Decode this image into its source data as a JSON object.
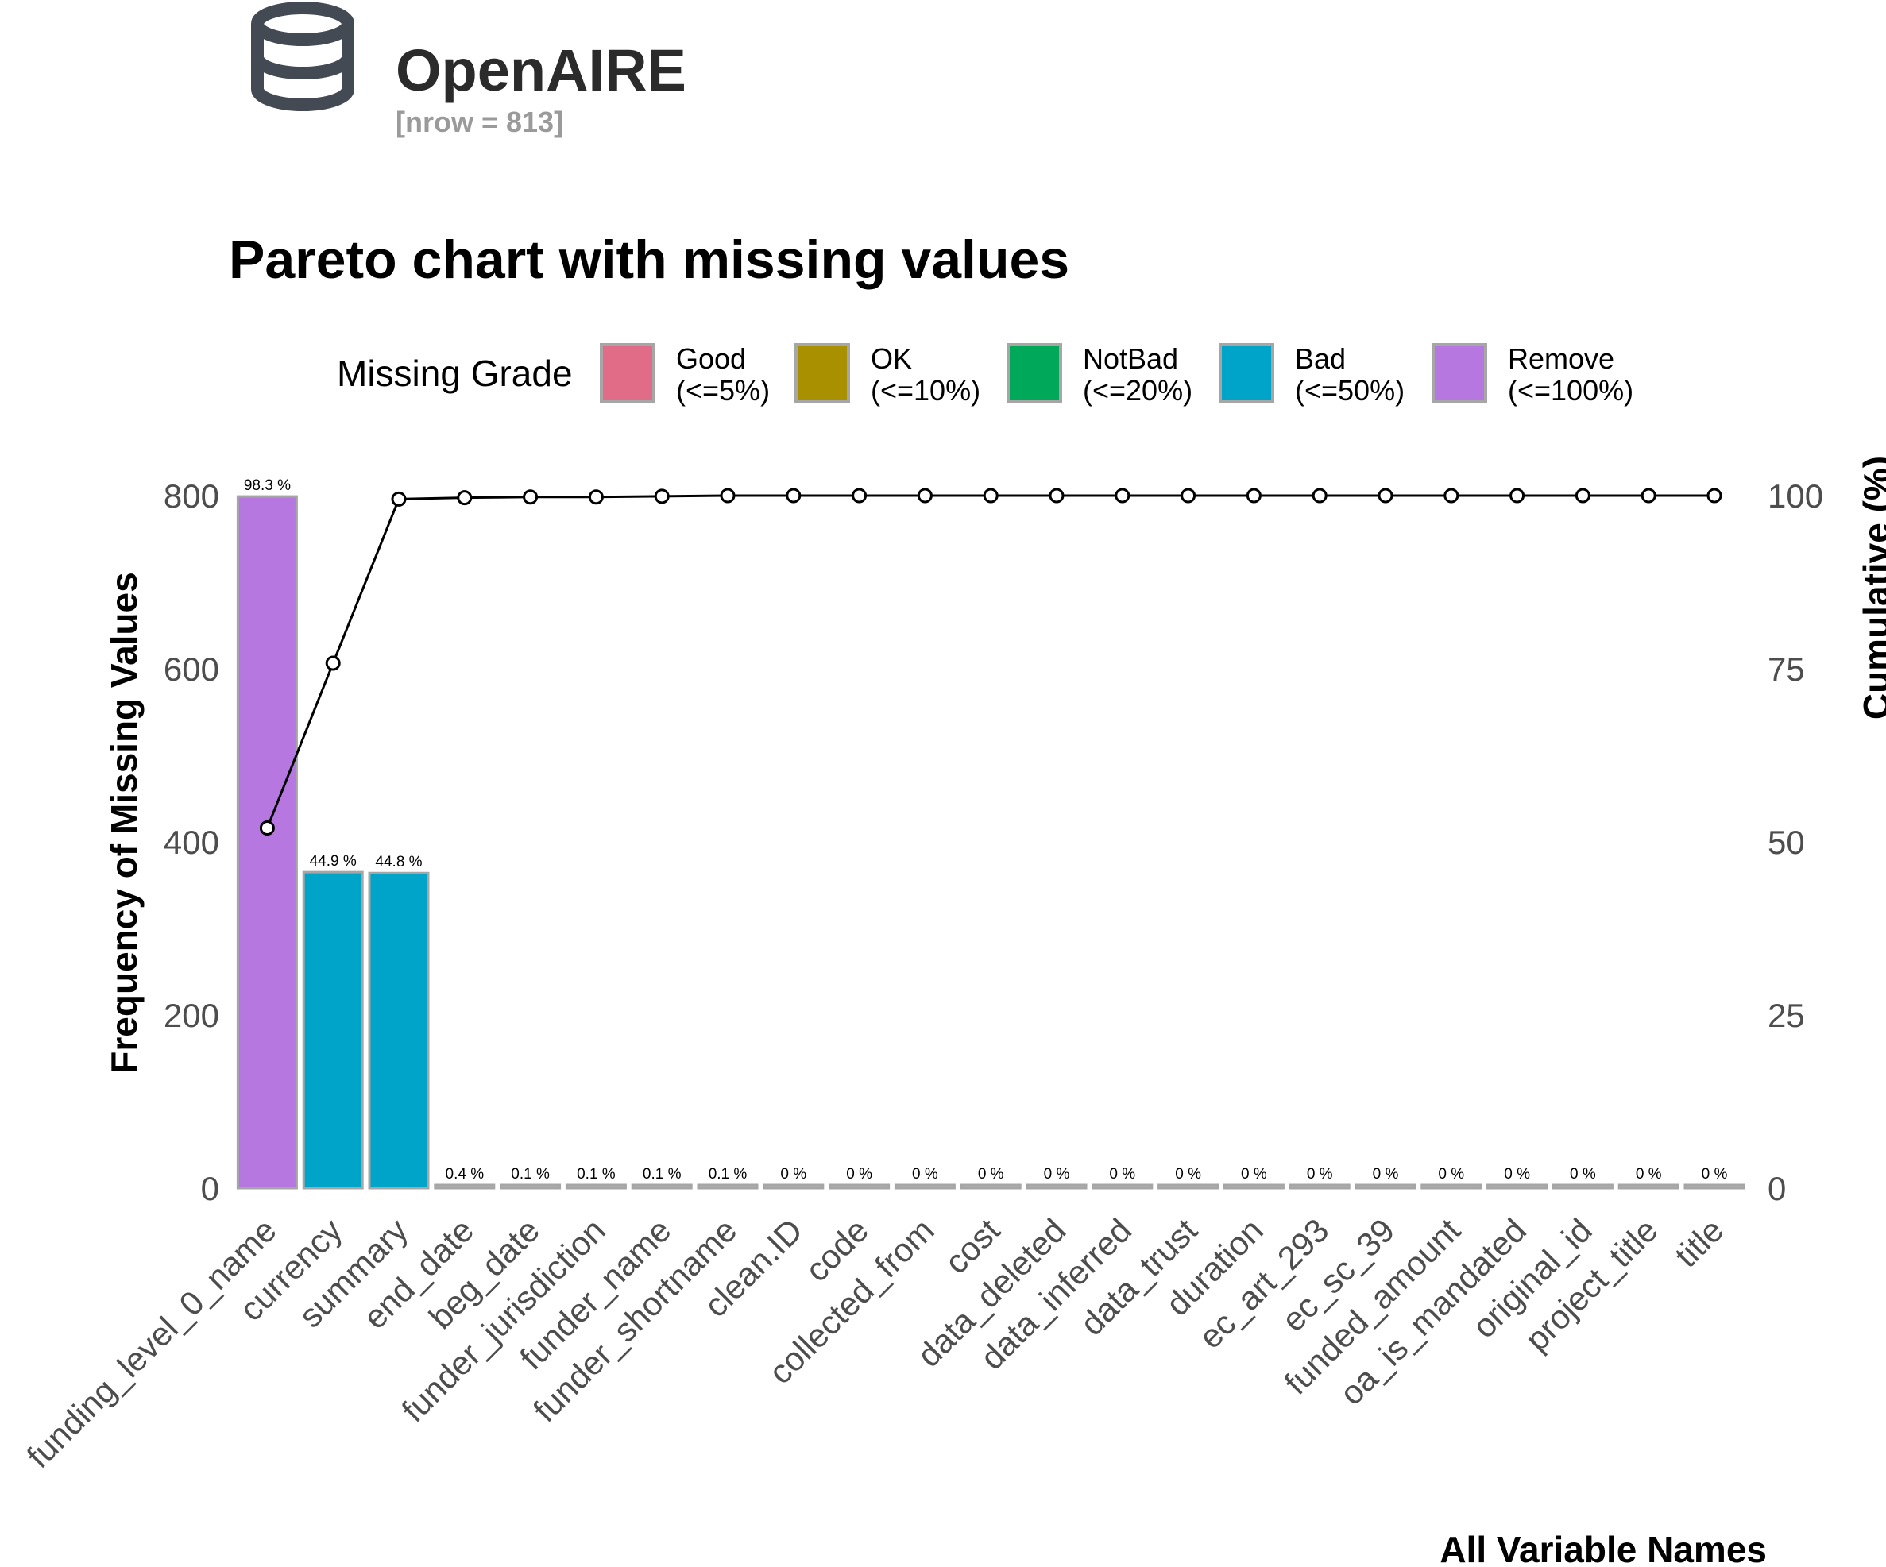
{
  "brand": {
    "name": "OpenAIRE",
    "subtitle": "[nrow = 813]",
    "icon": "database-icon",
    "icon_color": "#434a54"
  },
  "chart_data": {
    "type": "bar",
    "title": "Pareto chart with missing values",
    "xlabel": "All Variable Names",
    "ylabel": "Frequency of Missing Values",
    "y2label": "Cumulative (%)",
    "ylim": [
      0,
      800
    ],
    "y2lim": [
      0,
      100
    ],
    "yticks": [
      0,
      200,
      400,
      600,
      800
    ],
    "y2ticks": [
      0,
      25,
      50,
      75,
      100
    ],
    "grid": false,
    "legend": {
      "title": "Missing Grade",
      "placement": "top",
      "entries": [
        {
          "name": "Good",
          "range": "(<=5%)",
          "color": "#e06c88"
        },
        {
          "name": "OK",
          "range": "(<=10%)",
          "color": "#a89000"
        },
        {
          "name": "NotBad",
          "range": "(<=20%)",
          "color": "#00a85a"
        },
        {
          "name": "Bad",
          "range": "(<=50%)",
          "color": "#00a4c9"
        },
        {
          "name": "Remove",
          "range": "(<=100%)",
          "color": "#b678e0"
        }
      ]
    },
    "categories": [
      "funding_level_0_name",
      "currency",
      "summary",
      "end_date",
      "beg_date",
      "funder_jurisdiction",
      "funder_name",
      "funder_shortname",
      "clean.ID",
      "code",
      "collected_from",
      "cost",
      "data_deleted",
      "data_inferred",
      "data_trust",
      "duration",
      "ec_art_293",
      "ec_sc_39",
      "funded_amount",
      "oa_is_mandated",
      "original_id",
      "project_title",
      "title"
    ],
    "values": [
      799,
      365,
      364,
      3,
      1,
      1,
      1,
      1,
      0,
      0,
      0,
      0,
      0,
      0,
      0,
      0,
      0,
      0,
      0,
      0,
      0,
      0,
      0
    ],
    "percent_labels": [
      "98.3 %",
      "44.9 %",
      "44.8 %",
      "0.4 %",
      "0.1 %",
      "0.1 %",
      "0.1 %",
      "0.1 %",
      "0 %",
      "0 %",
      "0 %",
      "0 %",
      "0 %",
      "0 %",
      "0 %",
      "0 %",
      "0 %",
      "0 %",
      "0 %",
      "0 %",
      "0 %",
      "0 %",
      "0 %"
    ],
    "bar_colors": [
      "#b678e0",
      "#00a4c9",
      "#00a4c9",
      "#b3b3b3",
      "#b3b3b3",
      "#b3b3b3",
      "#b3b3b3",
      "#b3b3b3",
      "#b3b3b3",
      "#b3b3b3",
      "#b3b3b3",
      "#b3b3b3",
      "#b3b3b3",
      "#b3b3b3",
      "#b3b3b3",
      "#b3b3b3",
      "#b3b3b3",
      "#b3b3b3",
      "#b3b3b3",
      "#b3b3b3",
      "#b3b3b3",
      "#b3b3b3",
      "#b3b3b3"
    ],
    "cumulative": [
      52.0,
      75.8,
      99.5,
      99.7,
      99.8,
      99.8,
      99.9,
      100,
      100,
      100,
      100,
      100,
      100,
      100,
      100,
      100,
      100,
      100,
      100,
      100,
      100,
      100,
      100
    ]
  }
}
